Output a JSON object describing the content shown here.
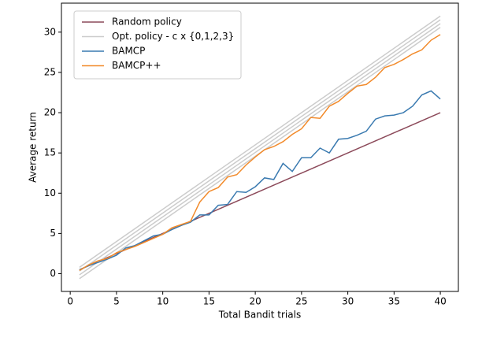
{
  "chart_data": {
    "type": "line",
    "xlabel": "Total Bandit trials",
    "ylabel": "Average return",
    "x": [
      1,
      2,
      3,
      4,
      5,
      6,
      7,
      8,
      9,
      10,
      11,
      12,
      13,
      14,
      15,
      16,
      17,
      18,
      19,
      20,
      21,
      22,
      23,
      24,
      25,
      26,
      27,
      28,
      29,
      30,
      31,
      32,
      33,
      34,
      35,
      36,
      37,
      38,
      39,
      40
    ],
    "xlim": [
      -0.95,
      41.95
    ],
    "ylim": [
      -2.2,
      33.6
    ],
    "xticks": [
      0,
      5,
      10,
      15,
      20,
      25,
      30,
      35,
      40
    ],
    "yticks": [
      0,
      5,
      10,
      15,
      20,
      25,
      30
    ],
    "grid": false,
    "legend": "upper left",
    "series": [
      {
        "name": "Random policy",
        "color": "#8c4a5a",
        "x": [
          1,
          40
        ],
        "values": [
          0.5,
          20
        ]
      },
      {
        "name": "Opt. policy - c x {0,1,2,3}",
        "color": "#cccccc",
        "x": [
          1,
          40
        ],
        "lines": [
          [
            0.8,
            32
          ],
          [
            0.33,
            31.53
          ],
          [
            -0.14,
            31.06
          ],
          [
            -0.61,
            30.59
          ]
        ]
      },
      {
        "name": "BAMCP",
        "color": "#3a7ab0",
        "values": [
          0.5,
          1.0,
          1.4,
          1.8,
          2.3,
          3.2,
          3.5,
          4.1,
          4.7,
          4.9,
          5.5,
          6.0,
          6.4,
          7.3,
          7.3,
          8.5,
          8.6,
          10.2,
          10.1,
          10.8,
          11.9,
          11.7,
          13.7,
          12.7,
          14.4,
          14.4,
          15.6,
          15.0,
          16.7,
          16.8,
          17.2,
          17.7,
          19.2,
          19.6,
          19.7,
          20.0,
          20.8,
          22.2,
          22.7,
          21.7
        ]
      },
      {
        "name": "BAMCP++",
        "color": "#f28a2a",
        "values": [
          0.4,
          1.1,
          1.6,
          1.9,
          2.6,
          3.0,
          3.4,
          3.9,
          4.4,
          4.9,
          5.7,
          6.1,
          6.5,
          8.9,
          10.2,
          10.7,
          12.0,
          12.3,
          13.5,
          14.5,
          15.4,
          15.8,
          16.4,
          17.3,
          18.0,
          19.4,
          19.3,
          20.8,
          21.4,
          22.4,
          23.3,
          23.5,
          24.4,
          25.6,
          26.0,
          26.6,
          27.3,
          27.8,
          29.0,
          29.7
        ]
      }
    ]
  }
}
